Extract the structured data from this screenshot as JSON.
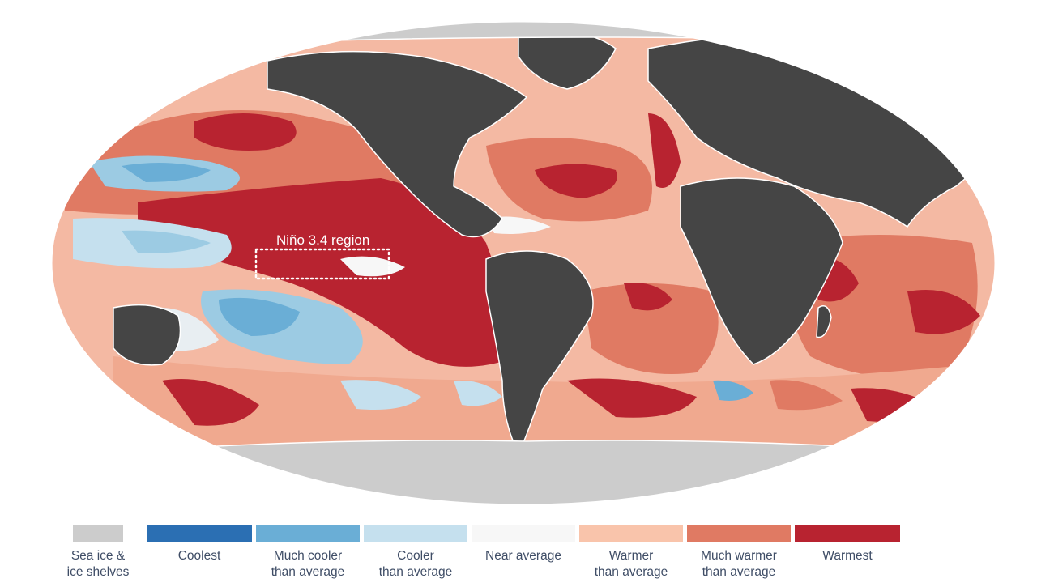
{
  "map": {
    "annotation": "Niño 3.4 region",
    "colors": {
      "land": "#454545",
      "sea_ice": "#cccccc",
      "ocean_background": "#f4b9a3",
      "outline": "#ffffff"
    }
  },
  "legend": {
    "items": [
      {
        "line1": "Sea ice &",
        "line2": "ice shelves",
        "color": "#cccccc"
      },
      {
        "line1": "Coolest",
        "line2": "",
        "color": "#2b6fb3"
      },
      {
        "line1": "Much cooler",
        "line2": "than average",
        "color": "#6aaed6"
      },
      {
        "line1": "Cooler",
        "line2": "than average",
        "color": "#c5e0ee"
      },
      {
        "line1": "Near average",
        "line2": "",
        "color": "#f7f7f7"
      },
      {
        "line1": "Warmer",
        "line2": "than average",
        "color": "#f9c4ab"
      },
      {
        "line1": "Much warmer",
        "line2": "than average",
        "color": "#e07a63"
      },
      {
        "line1": "Warmest",
        "line2": "",
        "color": "#b82330"
      }
    ]
  }
}
